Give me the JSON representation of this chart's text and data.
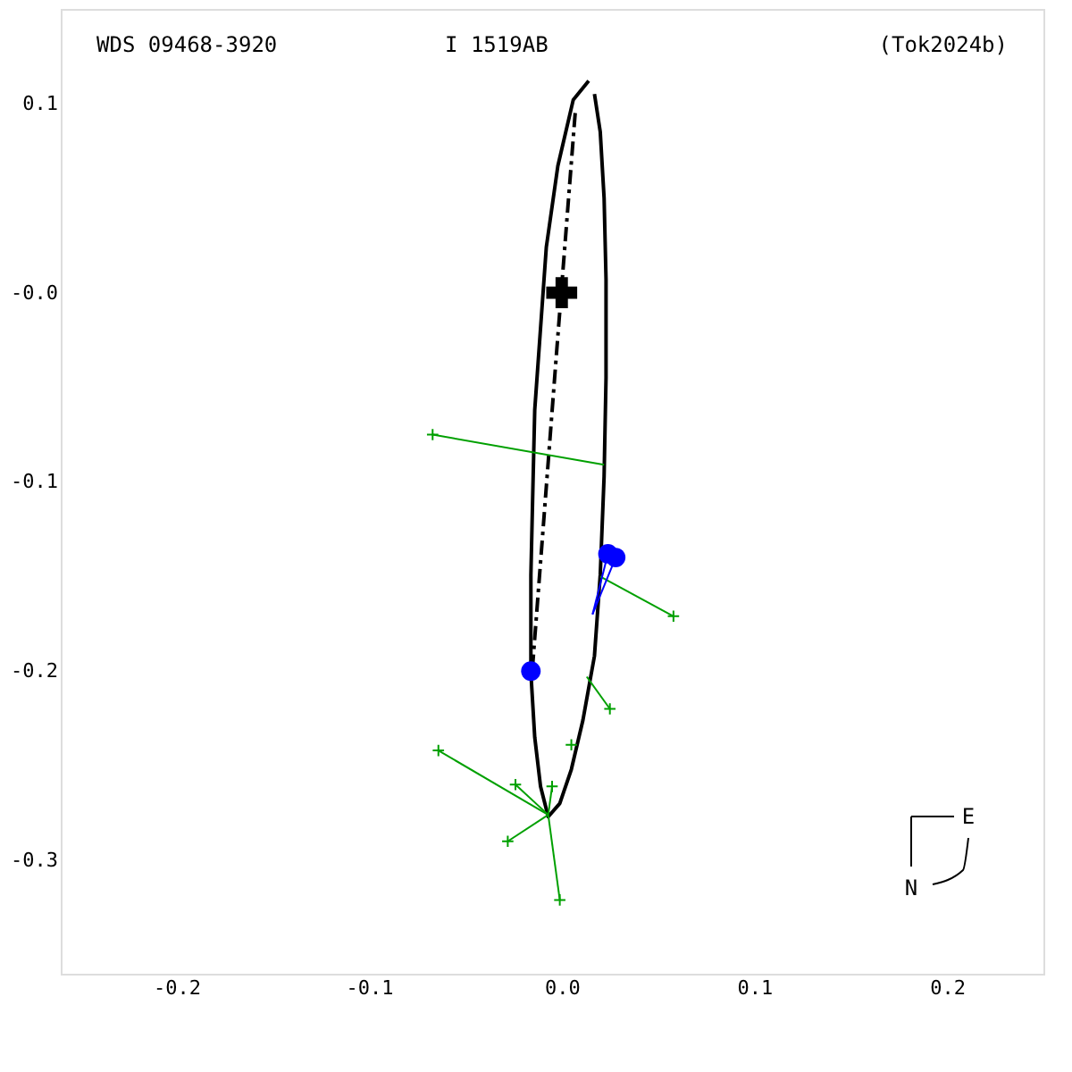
{
  "chart_data": {
    "type": "line",
    "title": "WDS 09468-3920",
    "subtitle": "I  1519AB",
    "annotations": [
      "(Tok2024b)",
      "N",
      "E"
    ],
    "xlim": [
      -0.26,
      0.25
    ],
    "ylim": [
      -0.36,
      0.15
    ],
    "xticks": [
      -0.2,
      -0.1,
      {
        "value": 0,
        "label": "0.0"
      },
      0.1,
      0.2
    ],
    "yticks": [
      -0.3,
      -0.2,
      -0.1,
      {
        "value": 0,
        "label": "-0.0"
      },
      0.1
    ],
    "grid": false,
    "legend": false,
    "series": [
      {
        "type": "line",
        "color": "#000000",
        "line_style": "solid",
        "x": [
          0.014,
          0.006,
          -0.002,
          -0.008,
          -0.011,
          -0.014,
          -0.015,
          -0.016,
          -0.016,
          -0.014,
          -0.011,
          -0.007,
          -0.001,
          0.005,
          0.011,
          0.017,
          0.02,
          0.022,
          0.023,
          0.023,
          0.022,
          0.02,
          0.017
        ],
        "values": [
          0.112,
          0.102,
          0.067,
          0.024,
          -0.019,
          -0.062,
          -0.105,
          -0.149,
          -0.201,
          -0.235,
          -0.261,
          -0.277,
          -0.27,
          -0.252,
          -0.226,
          -0.192,
          -0.149,
          -0.097,
          -0.045,
          0.007,
          0.05,
          0.085,
          0.105
        ]
      },
      {
        "type": "line",
        "color": "#000000",
        "line_style": "dashed",
        "x": [
          0.007,
          -0.003,
          -0.015
        ],
        "values": [
          0.095,
          -0.036,
          -0.196
        ]
      },
      {
        "type": "line",
        "color": "#00a000",
        "line_style": "solid",
        "x": [
          -0.067,
          0.022,
          null,
          0.058,
          0.02,
          null,
          0.025,
          0.013,
          null,
          -0.064,
          -0.007,
          null,
          -0.024,
          -0.007,
          null,
          -0.005,
          -0.007,
          null,
          -0.028,
          -0.007,
          null,
          -0.001,
          -0.007
        ],
        "values": [
          -0.075,
          -0.091,
          null,
          -0.171,
          -0.15,
          null,
          -0.22,
          -0.203,
          null,
          -0.242,
          -0.276,
          null,
          -0.26,
          -0.276,
          null,
          -0.261,
          -0.276,
          null,
          -0.29,
          -0.276,
          null,
          -0.321,
          -0.276
        ]
      },
      {
        "type": "line",
        "color": "#0000ff",
        "line_style": "solid",
        "x": [
          0.024,
          0.016,
          null,
          0.028,
          0.016
        ],
        "values": [
          -0.138,
          -0.17,
          null,
          -0.14,
          -0.17
        ]
      },
      {
        "type": "scatter",
        "color": "#00a000",
        "marker": "cross",
        "x": [
          -0.067,
          0.058,
          0.025,
          0.005,
          -0.064,
          -0.024,
          -0.005,
          -0.028,
          -0.001
        ],
        "values": [
          -0.075,
          -0.171,
          -0.22,
          -0.239,
          -0.242,
          -0.26,
          -0.261,
          -0.29,
          -0.321
        ]
      },
      {
        "type": "scatter",
        "color": "#0000ff",
        "marker": "circle",
        "x": [
          0.024,
          0.028
        ],
        "values": [
          -0.138,
          -0.14
        ]
      },
      {
        "type": "scatter",
        "color": "#0000ff",
        "marker": "circle",
        "x": [
          -0.016
        ],
        "values": [
          -0.2
        ]
      },
      {
        "type": "scatter",
        "color": "#000000",
        "marker": "cross",
        "x": [
          0.0
        ],
        "values": [
          0.0
        ]
      }
    ]
  }
}
